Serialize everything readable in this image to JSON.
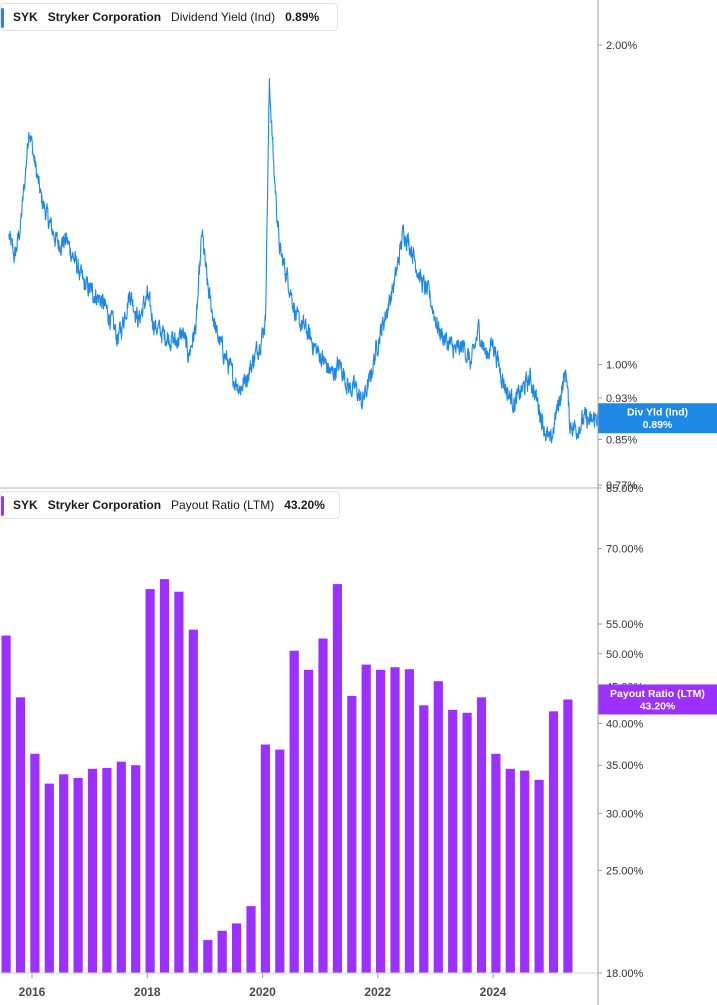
{
  "colors": {
    "yield": "#1e88e5",
    "payout": "#9b30ff",
    "axis": "#9e9e9e",
    "gridline": "#e6e6e6"
  },
  "top_legend": {
    "ticker": "SYK",
    "company": "Stryker Corporation",
    "metric": "Dividend Yield (Ind)",
    "value": "0.89%"
  },
  "bottom_legend": {
    "ticker": "SYK",
    "company": "Stryker Corporation",
    "metric": "Payout Ratio (LTM)",
    "value": "43.20%"
  },
  "chart_data": [
    {
      "type": "line",
      "series": [
        {
          "name": "Dividend Yield (Ind)",
          "current_label": "Div Yld (Ind)",
          "current_value": "0.89%"
        }
      ],
      "y_scale": "log",
      "ylim": [
        0.77,
        2.25
      ],
      "xlim": [
        2015.6,
        2025.95
      ],
      "y_ticks": [
        {
          "value": 2.0,
          "label": "2.00%"
        },
        {
          "value": 1.0,
          "label": "1.00%"
        },
        {
          "value": 0.93,
          "label": "0.93%"
        },
        {
          "value": 0.85,
          "label": "0.85%"
        },
        {
          "value": 0.77,
          "label": "0.77%"
        }
      ],
      "x_ticks": [],
      "anchors": [
        [
          2015.6,
          1.32
        ],
        [
          2015.7,
          1.26
        ],
        [
          2015.8,
          1.35
        ],
        [
          2015.88,
          1.5
        ],
        [
          2015.95,
          1.68
        ],
        [
          2016.02,
          1.58
        ],
        [
          2016.15,
          1.44
        ],
        [
          2016.3,
          1.36
        ],
        [
          2016.45,
          1.3
        ],
        [
          2016.6,
          1.31
        ],
        [
          2016.75,
          1.25
        ],
        [
          2016.9,
          1.19
        ],
        [
          2017.05,
          1.17
        ],
        [
          2017.2,
          1.15
        ],
        [
          2017.35,
          1.11
        ],
        [
          2017.48,
          1.06
        ],
        [
          2017.55,
          1.08
        ],
        [
          2017.7,
          1.17
        ],
        [
          2017.85,
          1.1
        ],
        [
          2018.0,
          1.16
        ],
        [
          2018.12,
          1.09
        ],
        [
          2018.25,
          1.07
        ],
        [
          2018.38,
          1.06
        ],
        [
          2018.5,
          1.05
        ],
        [
          2018.62,
          1.07
        ],
        [
          2018.72,
          1.02
        ],
        [
          2018.85,
          1.09
        ],
        [
          2018.95,
          1.33
        ],
        [
          2019.05,
          1.18
        ],
        [
          2019.2,
          1.07
        ],
        [
          2019.35,
          1.02
        ],
        [
          2019.5,
          0.97
        ],
        [
          2019.62,
          0.95
        ],
        [
          2019.75,
          0.98
        ],
        [
          2019.9,
          1.03
        ],
        [
          2019.98,
          1.06
        ],
        [
          2020.05,
          1.1
        ],
        [
          2020.12,
          1.85
        ],
        [
          2020.2,
          1.52
        ],
        [
          2020.3,
          1.28
        ],
        [
          2020.45,
          1.2
        ],
        [
          2020.6,
          1.1
        ],
        [
          2020.75,
          1.08
        ],
        [
          2020.9,
          1.04
        ],
        [
          2021.05,
          1.01
        ],
        [
          2021.2,
          0.98
        ],
        [
          2021.35,
          1.0
        ],
        [
          2021.5,
          0.95
        ],
        [
          2021.62,
          0.95
        ],
        [
          2021.72,
          0.92
        ],
        [
          2021.85,
          0.96
        ],
        [
          2022.0,
          1.05
        ],
        [
          2022.15,
          1.12
        ],
        [
          2022.3,
          1.2
        ],
        [
          2022.45,
          1.34
        ],
        [
          2022.6,
          1.28
        ],
        [
          2022.75,
          1.2
        ],
        [
          2022.9,
          1.16
        ],
        [
          2023.05,
          1.08
        ],
        [
          2023.2,
          1.05
        ],
        [
          2023.35,
          1.03
        ],
        [
          2023.5,
          1.04
        ],
        [
          2023.62,
          1.0
        ],
        [
          2023.75,
          1.08
        ],
        [
          2023.88,
          1.02
        ],
        [
          2024.0,
          1.05
        ],
        [
          2024.12,
          0.99
        ],
        [
          2024.25,
          0.94
        ],
        [
          2024.38,
          0.92
        ],
        [
          2024.52,
          0.95
        ],
        [
          2024.65,
          0.97
        ],
        [
          2024.8,
          0.91
        ],
        [
          2024.92,
          0.86
        ],
        [
          2025.0,
          0.84
        ],
        [
          2025.08,
          0.89
        ],
        [
          2025.18,
          0.94
        ],
        [
          2025.27,
          0.99
        ],
        [
          2025.33,
          0.88
        ],
        [
          2025.45,
          0.87
        ],
        [
          2025.6,
          0.89
        ],
        [
          2025.7,
          0.88
        ],
        [
          2025.85,
          0.9
        ],
        [
          2025.95,
          0.89
        ]
      ]
    },
    {
      "type": "bar",
      "series": [
        {
          "name": "Payout Ratio (LTM)",
          "current_label": "Payout Ratio (LTM)",
          "current_value": "43.20%"
        }
      ],
      "y_scale": "log",
      "ylim": [
        18.0,
        85.0
      ],
      "y_ticks": [
        {
          "value": 85.0,
          "label": "85.00%"
        },
        {
          "value": 70.0,
          "label": "70.00%"
        },
        {
          "value": 55.0,
          "label": "55.00%"
        },
        {
          "value": 50.0,
          "label": "50.00%"
        },
        {
          "value": 45.0,
          "label": "45.00%"
        },
        {
          "value": 40.0,
          "label": "40.00%"
        },
        {
          "value": 35.0,
          "label": "35.00%"
        },
        {
          "value": 30.0,
          "label": "30.00%"
        },
        {
          "value": 25.0,
          "label": "25.00%"
        },
        {
          "value": 18.0,
          "label": "18.00%"
        }
      ],
      "x_ticks": [
        {
          "value": 2016.0,
          "label": "2016"
        },
        {
          "value": 2018.0,
          "label": "2018"
        },
        {
          "value": 2020.0,
          "label": "2020"
        },
        {
          "value": 2022.0,
          "label": "2022"
        },
        {
          "value": 2024.0,
          "label": "2024"
        }
      ],
      "x": [
        2015.55,
        2015.8,
        2016.05,
        2016.3,
        2016.55,
        2016.8,
        2017.05,
        2017.3,
        2017.55,
        2017.8,
        2018.05,
        2018.3,
        2018.55,
        2018.8,
        2019.05,
        2019.3,
        2019.55,
        2019.8,
        2020.05,
        2020.3,
        2020.55,
        2020.8,
        2021.05,
        2021.3,
        2021.55,
        2021.8,
        2022.05,
        2022.3,
        2022.55,
        2022.8,
        2023.05,
        2023.3,
        2023.55,
        2023.8,
        2024.05,
        2024.3,
        2024.55,
        2024.8,
        2025.05,
        2025.3
      ],
      "values": [
        53.0,
        43.5,
        36.3,
        33.0,
        34.0,
        33.6,
        34.6,
        34.7,
        35.4,
        35.0,
        61.5,
        63.5,
        61.0,
        54.0,
        20.0,
        20.6,
        21.1,
        22.3,
        37.4,
        36.8,
        50.5,
        47.5,
        52.5,
        62.5,
        43.7,
        48.3,
        47.5,
        47.9,
        47.6,
        42.4,
        45.8,
        41.8,
        41.4,
        43.5,
        36.3,
        34.6,
        34.4,
        33.4,
        41.6,
        43.2
      ]
    }
  ]
}
